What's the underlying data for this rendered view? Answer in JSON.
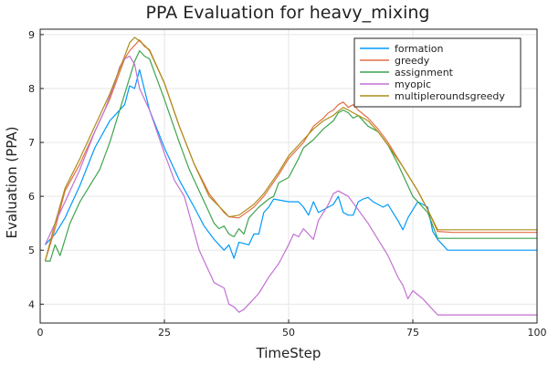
{
  "chart_data": {
    "type": "line",
    "title": "PPA Evaluation for heavy_mixing",
    "xlabel": "TimeStep",
    "ylabel": "Evaluation (PPA)",
    "xlim": [
      0,
      100
    ],
    "ylim": [
      3.65,
      9.1
    ],
    "xticks": [
      0,
      25,
      50,
      75,
      100
    ],
    "yticks": [
      4,
      5,
      6,
      7,
      8,
      9
    ],
    "grid": true,
    "legend_position": "top-right",
    "series": [
      {
        "name": "formation",
        "color": "#009AFA",
        "x": [
          1,
          3,
          5,
          8,
          11,
          14,
          17,
          18,
          19,
          20,
          22,
          25,
          28,
          31,
          33,
          35,
          37,
          38,
          39,
          40,
          42,
          43,
          44,
          45,
          46,
          47,
          50,
          52,
          53,
          54,
          55,
          56,
          58,
          59,
          60,
          61,
          62,
          63,
          64,
          65,
          66,
          67,
          68,
          69,
          70,
          71,
          72,
          73,
          74,
          75,
          76,
          77,
          78,
          79,
          80,
          82,
          85,
          90,
          95,
          100
        ],
        "y": [
          5.1,
          5.3,
          5.6,
          6.2,
          6.9,
          7.4,
          7.7,
          8.05,
          8.0,
          8.35,
          7.6,
          6.9,
          6.3,
          5.8,
          5.45,
          5.2,
          5.0,
          5.1,
          4.85,
          5.15,
          5.1,
          5.3,
          5.3,
          5.7,
          5.8,
          5.95,
          5.9,
          5.9,
          5.8,
          5.65,
          5.9,
          5.7,
          5.8,
          5.85,
          6.0,
          5.7,
          5.65,
          5.65,
          5.9,
          5.95,
          5.98,
          5.9,
          5.85,
          5.8,
          5.85,
          5.7,
          5.55,
          5.38,
          5.6,
          5.75,
          5.9,
          5.85,
          5.8,
          5.35,
          5.2,
          5.0,
          5.0,
          5.0,
          5.0,
          5.0
        ]
      },
      {
        "name": "greedy",
        "color": "#E26F46",
        "x": [
          1,
          3,
          5,
          8,
          11,
          14,
          16,
          17,
          18,
          19,
          20,
          21,
          22,
          25,
          28,
          31,
          34,
          37,
          38,
          40,
          43,
          45,
          48,
          50,
          53,
          55,
          57,
          58,
          59,
          60,
          61,
          62,
          63,
          64,
          66,
          68,
          70,
          73,
          76,
          78,
          80,
          83,
          85,
          90,
          95,
          100
        ],
        "y": [
          4.8,
          5.4,
          6.1,
          6.6,
          7.2,
          7.8,
          8.3,
          8.55,
          8.7,
          8.8,
          8.9,
          8.78,
          8.72,
          8.1,
          7.3,
          6.6,
          6.05,
          5.7,
          5.62,
          5.6,
          5.8,
          6.0,
          6.4,
          6.7,
          7.0,
          7.3,
          7.45,
          7.55,
          7.6,
          7.7,
          7.75,
          7.65,
          7.7,
          7.6,
          7.45,
          7.25,
          7.0,
          6.55,
          6.1,
          5.75,
          5.35,
          5.33,
          5.33,
          5.33,
          5.33,
          5.33
        ]
      },
      {
        "name": "assignment",
        "color": "#3DA44D",
        "x": [
          1,
          2,
          3,
          4,
          5,
          6,
          8,
          10,
          12,
          14,
          17,
          18,
          19,
          20,
          21,
          22,
          25,
          28,
          30,
          32,
          34,
          35,
          36,
          37,
          38,
          39,
          40,
          41,
          42,
          44,
          46,
          47,
          48,
          50,
          52,
          53,
          55,
          57,
          59,
          60,
          61,
          62,
          63,
          64,
          66,
          68,
          70,
          72,
          73,
          75,
          77,
          78,
          80,
          85,
          90,
          95,
          100
        ],
        "y": [
          4.8,
          4.8,
          5.1,
          4.9,
          5.2,
          5.5,
          5.9,
          6.2,
          6.5,
          7.0,
          7.9,
          8.2,
          8.5,
          8.7,
          8.6,
          8.55,
          7.8,
          7.0,
          6.5,
          6.1,
          5.7,
          5.5,
          5.4,
          5.45,
          5.3,
          5.25,
          5.4,
          5.3,
          5.6,
          5.8,
          5.95,
          6.0,
          6.25,
          6.35,
          6.7,
          6.9,
          7.05,
          7.25,
          7.4,
          7.55,
          7.6,
          7.55,
          7.45,
          7.5,
          7.3,
          7.2,
          6.95,
          6.6,
          6.4,
          6.0,
          5.8,
          5.7,
          5.22,
          5.22,
          5.22,
          5.22,
          5.22
        ]
      },
      {
        "name": "myopic",
        "color": "#C271D2",
        "x": [
          1,
          3,
          5,
          8,
          11,
          13,
          15,
          16,
          17,
          18,
          19,
          20,
          22,
          25,
          27,
          29,
          32,
          34,
          35,
          37,
          38,
          39,
          40,
          41,
          42,
          44,
          46,
          48,
          50,
          51,
          52,
          53,
          54,
          55,
          56,
          57,
          58,
          59,
          60,
          61,
          62,
          64,
          66,
          68,
          70,
          72,
          73,
          74,
          75,
          77,
          78,
          80,
          85,
          90,
          95,
          100
        ],
        "y": [
          5.1,
          5.5,
          5.9,
          6.5,
          7.2,
          7.6,
          8.1,
          8.4,
          8.55,
          8.6,
          8.45,
          8.0,
          7.6,
          6.8,
          6.3,
          6.0,
          5.0,
          4.6,
          4.4,
          4.3,
          4.0,
          3.95,
          3.85,
          3.9,
          4.0,
          4.2,
          4.5,
          4.75,
          5.1,
          5.3,
          5.25,
          5.4,
          5.3,
          5.2,
          5.55,
          5.7,
          5.85,
          6.05,
          6.1,
          6.05,
          6.0,
          5.75,
          5.5,
          5.2,
          4.9,
          4.5,
          4.35,
          4.1,
          4.25,
          4.1,
          4.0,
          3.8,
          3.8,
          3.8,
          3.8,
          3.8
        ]
      },
      {
        "name": "multipleroundsgreedy",
        "color": "#AC8D18",
        "x": [
          1,
          3,
          5,
          8,
          11,
          14,
          17,
          18,
          19,
          20,
          21,
          22,
          25,
          28,
          31,
          34,
          37,
          38,
          40,
          43,
          45,
          48,
          50,
          53,
          55,
          57,
          59,
          60,
          61,
          62,
          63,
          64,
          66,
          68,
          70,
          73,
          76,
          78,
          80,
          83,
          85,
          90,
          95,
          100
        ],
        "y": [
          4.8,
          5.5,
          6.15,
          6.7,
          7.3,
          7.9,
          8.6,
          8.85,
          8.95,
          8.88,
          8.8,
          8.7,
          8.1,
          7.3,
          6.6,
          6.0,
          5.72,
          5.62,
          5.65,
          5.85,
          6.05,
          6.45,
          6.75,
          7.05,
          7.25,
          7.4,
          7.5,
          7.58,
          7.65,
          7.6,
          7.55,
          7.5,
          7.4,
          7.2,
          6.95,
          6.55,
          6.1,
          5.75,
          5.38,
          5.38,
          5.38,
          5.38,
          5.38,
          5.38
        ]
      }
    ]
  }
}
